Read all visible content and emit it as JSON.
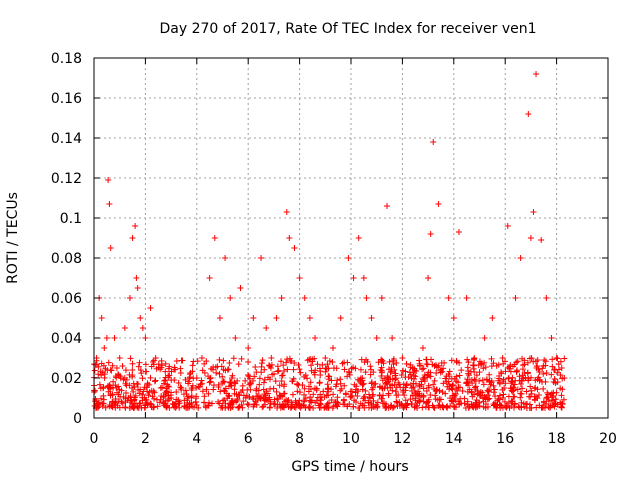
{
  "chart_data": {
    "type": "scatter",
    "title": "Day 270 of 2017, Rate Of TEC Index for receiver ven1",
    "xlabel": "GPS time / hours",
    "ylabel": "ROTI / TECUs",
    "xlim": [
      0,
      20
    ],
    "ylim": [
      0,
      0.18
    ],
    "xticks": [
      0,
      2,
      4,
      6,
      8,
      10,
      12,
      14,
      16,
      18,
      20
    ],
    "yticks": [
      0,
      0.02,
      0.04,
      0.06,
      0.08,
      0.1,
      0.12,
      0.14,
      0.16,
      0.18
    ],
    "x_tick_labels": [
      "0",
      "2",
      "4",
      "6",
      "8",
      "10",
      "12",
      "14",
      "16",
      "18",
      "20"
    ],
    "y_tick_labels": [
      "0",
      "0.02",
      "0.04",
      "0.06",
      "0.08",
      "0.1",
      "0.12",
      "0.14",
      "0.16",
      "0.18"
    ],
    "grid": true,
    "marker": "+",
    "series": [
      {
        "name": "ROTI",
        "color": "#ff0000",
        "x": [
          0.1,
          0.2,
          0.3,
          0.4,
          0.5,
          0.55,
          0.6,
          0.65,
          0.8,
          1.0,
          1.2,
          1.4,
          1.5,
          1.6,
          1.65,
          1.7,
          1.8,
          1.9,
          2.0,
          2.2,
          2.4,
          2.6,
          2.8,
          3.0,
          3.2,
          3.4,
          3.6,
          3.8,
          4.0,
          4.2,
          4.5,
          4.7,
          4.9,
          5.1,
          5.3,
          5.5,
          5.7,
          6.0,
          6.2,
          6.5,
          6.7,
          6.9,
          7.1,
          7.3,
          7.5,
          7.6,
          7.8,
          8.0,
          8.2,
          8.4,
          8.6,
          9.0,
          9.3,
          9.6,
          9.9,
          10.1,
          10.3,
          10.5,
          10.6,
          10.8,
          11.0,
          11.2,
          11.4,
          11.6,
          12.0,
          12.4,
          12.8,
          13.0,
          13.1,
          13.2,
          13.4,
          13.8,
          14.0,
          14.2,
          14.5,
          14.8,
          15.2,
          15.5,
          15.9,
          16.1,
          16.4,
          16.6,
          16.9,
          17.0,
          17.1,
          17.2,
          17.4,
          17.6,
          17.8,
          18.0,
          18.2,
          18.3
        ],
        "y": [
          0.03,
          0.06,
          0.05,
          0.035,
          0.04,
          0.119,
          0.107,
          0.085,
          0.04,
          0.03,
          0.045,
          0.06,
          0.09,
          0.096,
          0.07,
          0.065,
          0.05,
          0.045,
          0.04,
          0.055,
          0.03,
          0.015,
          0.012,
          0.01,
          0.013,
          0.015,
          0.012,
          0.014,
          0.02,
          0.03,
          0.07,
          0.09,
          0.05,
          0.08,
          0.06,
          0.04,
          0.065,
          0.035,
          0.05,
          0.08,
          0.045,
          0.03,
          0.05,
          0.06,
          0.103,
          0.09,
          0.085,
          0.07,
          0.06,
          0.05,
          0.04,
          0.03,
          0.035,
          0.05,
          0.08,
          0.07,
          0.09,
          0.07,
          0.06,
          0.05,
          0.04,
          0.06,
          0.106,
          0.04,
          0.03,
          0.025,
          0.035,
          0.07,
          0.092,
          0.138,
          0.107,
          0.06,
          0.05,
          0.093,
          0.06,
          0.03,
          0.04,
          0.05,
          0.03,
          0.096,
          0.06,
          0.08,
          0.152,
          0.09,
          0.103,
          0.172,
          0.089,
          0.06,
          0.04,
          0.03,
          0.025,
          0.02
        ],
        "baseline_band": [
          0.005,
          0.03
        ]
      }
    ]
  }
}
